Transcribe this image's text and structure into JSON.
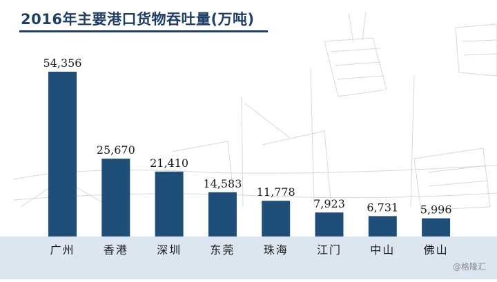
{
  "chart_data": {
    "type": "bar",
    "title": "2016年主要港口货物吞吐量(万吨)",
    "categories": [
      "广州",
      "香港",
      "深圳",
      "东莞",
      "珠海",
      "江门",
      "中山",
      "佛山"
    ],
    "values": [
      54356,
      25670,
      21410,
      14583,
      11778,
      7923,
      6731,
      5996
    ],
    "value_labels": [
      "54,356",
      "25,670",
      "21,410",
      "14,583",
      "11,778",
      "7,923",
      "6,731",
      "5,996"
    ],
    "xlabel": "",
    "ylabel": "",
    "ylim": [
      0,
      54356
    ],
    "grid": false,
    "legend": "none",
    "bar_color": "#1f4e79",
    "band_color": "#dce6f1"
  },
  "watermark": "@格隆汇"
}
